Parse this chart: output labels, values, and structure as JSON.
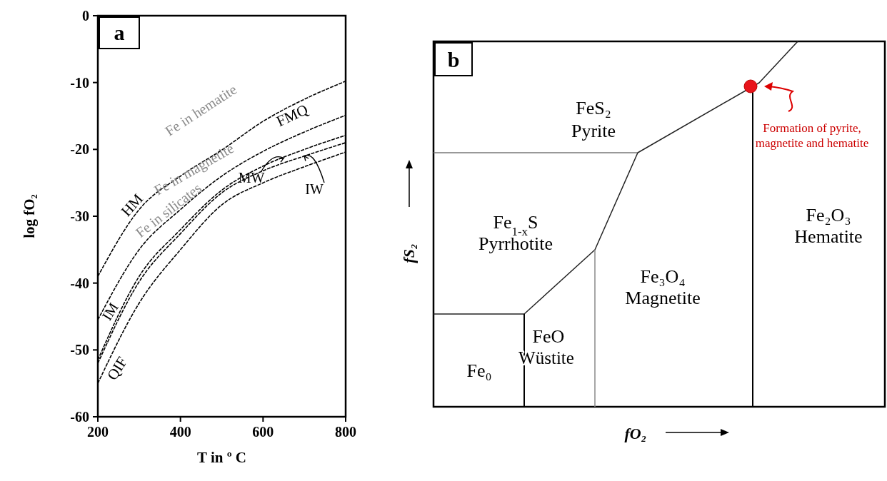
{
  "chart_data": [
    {
      "type": "line",
      "title": "a",
      "xlabel": "T in º C",
      "ylabel": "log fO₂",
      "x": [
        200,
        300,
        400,
        500,
        600,
        700,
        800
      ],
      "series": [
        {
          "name": "HM",
          "color": "#000000",
          "values": [
            -39,
            -29,
            -24,
            -20.1,
            -15.8,
            -12.5,
            -9.8
          ]
        },
        {
          "name": "FMQ",
          "color": "#000000",
          "values": [
            -45.5,
            -35,
            -29,
            -24,
            -20.3,
            -17.4,
            -14.9
          ]
        },
        {
          "color": "#000000",
          "values": [
            -51.5,
            -39,
            -32,
            -26.1,
            -22.5,
            -20,
            -17.9
          ]
        },
        {
          "color": "#000000",
          "values": [
            -52,
            -39.8,
            -32.6,
            -26.5,
            -23.2,
            -21,
            -19
          ]
        },
        {
          "name": "QIF",
          "color": "#000000",
          "values": [
            -55,
            -43,
            -35,
            -28.3,
            -25,
            -22.6,
            -20.4
          ]
        }
      ],
      "line_style": "dashed",
      "xlim": [
        200,
        800
      ],
      "ylim": [
        -60,
        0
      ],
      "xticks": [
        200,
        400,
        600,
        800
      ],
      "yticks": [
        -60,
        -50,
        -40,
        -30,
        -20,
        -10,
        0
      ],
      "annotations": [
        "Fe in hematite",
        "Fe in magnetite",
        "Fe in silicates",
        "IM",
        {
          "text": "MW",
          "x": 650,
          "y": -21.3
        },
        {
          "text": "IW",
          "x": 700,
          "y": -21
        }
      ]
    },
    {
      "type": "other",
      "title": "b",
      "xlabel": "fO₂",
      "ylabel": "fS₂",
      "annotations": [
        "FeS₂",
        "Pyrite",
        "Fe$_{1-x}$S",
        "Pyrrhotite",
        "Fe₃O₄",
        "Magnetite",
        "FeO",
        "Wüstite",
        "Fe₀",
        "Fe₂O₃",
        "Hematite",
        "Formation of pyrite,",
        "magnetite and hematite"
      ]
    }
  ]
}
